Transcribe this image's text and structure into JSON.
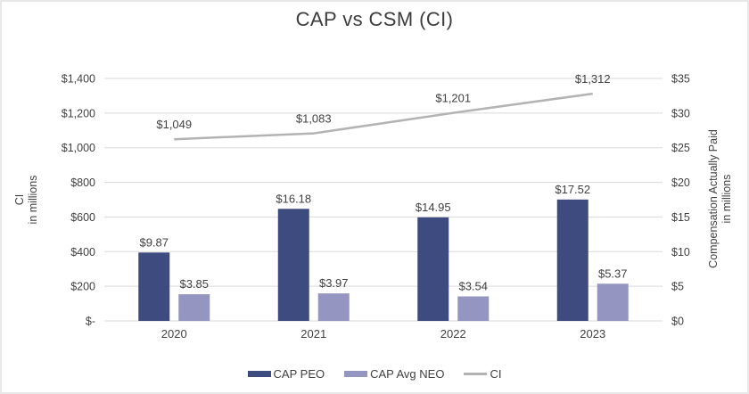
{
  "title": "CAP vs CSM (CI)",
  "chart_data": {
    "type": "bar",
    "subtype": "grouped-bars-with-line-overlay",
    "title": "CAP vs CSM (CI)",
    "categories": [
      "2020",
      "2021",
      "2022",
      "2023"
    ],
    "series": [
      {
        "name": "CAP PEO",
        "type": "bar",
        "axis": "right",
        "values": [
          9.87,
          16.18,
          14.95,
          17.52
        ],
        "data_labels": [
          "$9.87",
          "$16.18",
          "$14.95",
          "$17.52"
        ],
        "color": "#3E4B7E"
      },
      {
        "name": "CAP Avg NEO",
        "type": "bar",
        "axis": "right",
        "values": [
          3.85,
          3.97,
          3.54,
          5.37
        ],
        "data_labels": [
          "$3.85",
          "$3.97",
          "$3.54",
          "$5.37"
        ],
        "color": "#9496C1"
      },
      {
        "name": "CI",
        "type": "line",
        "axis": "left",
        "values": [
          1049,
          1083,
          1201,
          1312
        ],
        "data_labels": [
          "$1,049",
          "$1,083",
          "$1,201",
          "$1,312"
        ],
        "color": "#B3B3B3"
      }
    ],
    "left_axis": {
      "title_lines": [
        "CI",
        "in millions"
      ],
      "min": 0,
      "max": 1400,
      "tick_labels": [
        "$-",
        "$200",
        "$400",
        "$600",
        "$800",
        "$1,000",
        "$1,200",
        "$1,400"
      ]
    },
    "right_axis": {
      "title_lines": [
        "Compensation Actually Paid",
        "in millions"
      ],
      "min": 0,
      "max": 35,
      "tick_labels": [
        "$0",
        "$5",
        "$10",
        "$15",
        "$20",
        "$25",
        "$30",
        "$35"
      ]
    },
    "grid": true,
    "legend_position": "bottom",
    "legend": [
      {
        "label": "CAP PEO",
        "swatch": "bar",
        "color": "#3E4B7E"
      },
      {
        "label": "CAP Avg NEO",
        "swatch": "bar",
        "color": "#9496C1"
      },
      {
        "label": "CI",
        "swatch": "line",
        "color": "#B3B3B3"
      }
    ]
  },
  "colors": {
    "grid": "#D9D9D9",
    "text": "#404040",
    "frame_border": "#E8E8E8",
    "background": "#FFFFFF"
  }
}
